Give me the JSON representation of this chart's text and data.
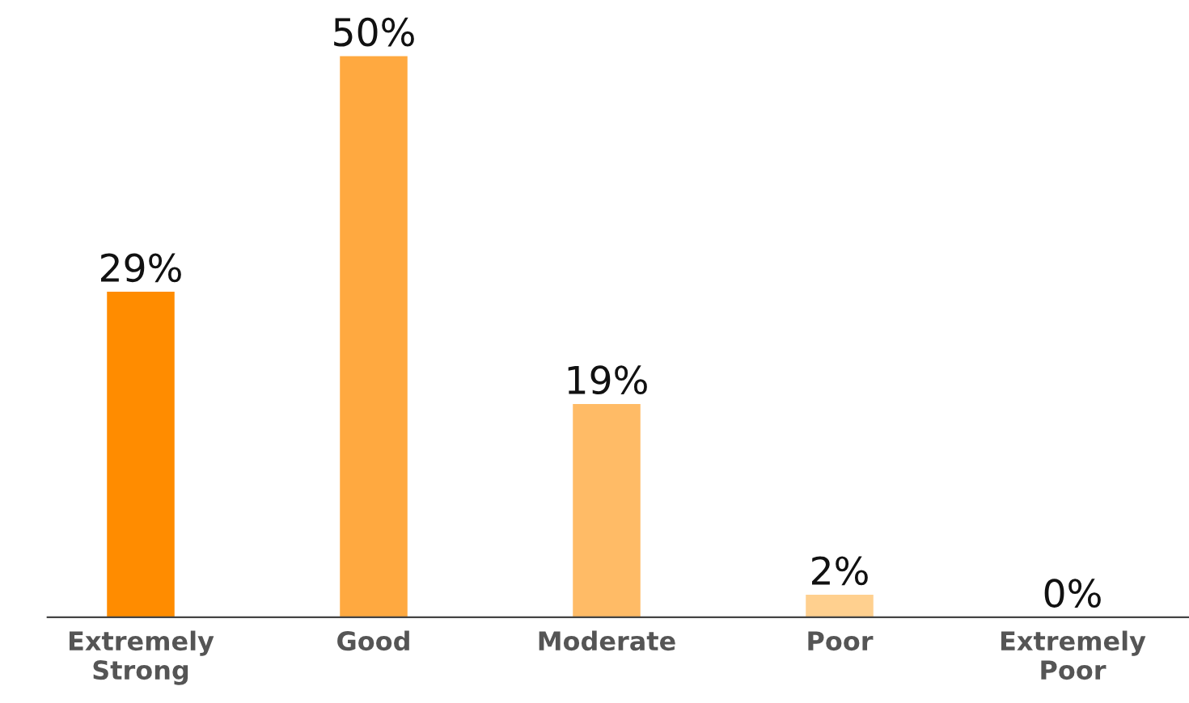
{
  "chart_data": {
    "type": "bar",
    "categories": [
      "Extremely\nStrong",
      "Good",
      "Moderate",
      "Poor",
      "Extremely\nPoor"
    ],
    "values": [
      29,
      50,
      19,
      2,
      0
    ],
    "colors": [
      "#ff8c00",
      "#ffa940",
      "#ffbb66",
      "#ffd08f",
      "#ffe0b3"
    ],
    "data_labels": true,
    "value_labels": [
      "29%",
      "50%",
      "19%",
      "2%",
      "0%"
    ],
    "grid": false,
    "legend": false
  }
}
